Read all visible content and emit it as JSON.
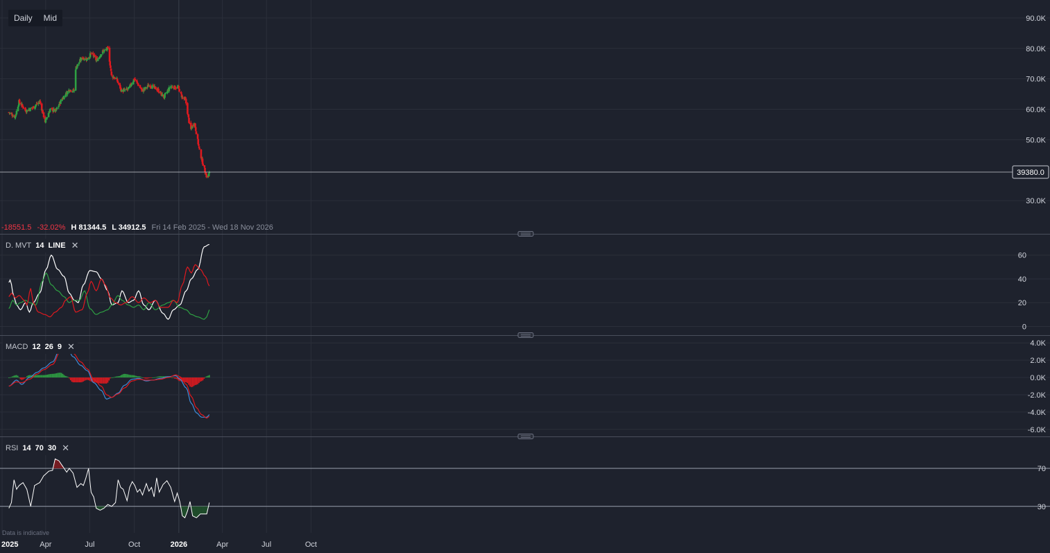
{
  "toolbar": {
    "timeframe": "Daily",
    "price_type": "Mid"
  },
  "stats": {
    "change": "-18551.5",
    "change_pct": "-32.02%",
    "high": "H 81344.5",
    "low": "L 34912.5",
    "range": "Fri 14 Feb 2025 - Wed 18 Nov 2026"
  },
  "last_price": "39380.0",
  "panes": {
    "price": {
      "ticks": [
        "90.0K",
        "80.0K",
        "70.0K",
        "60.0K",
        "50.0K",
        "30.0K"
      ],
      "tick_values": [
        90000,
        80000,
        70000,
        60000,
        50000,
        30000
      ]
    },
    "dmvt": {
      "name": "D. MVT",
      "params": [
        "14",
        "LINE"
      ],
      "ticks": [
        "60",
        "40",
        "20",
        "0"
      ],
      "tick_values": [
        60,
        40,
        20,
        0
      ]
    },
    "macd": {
      "name": "MACD",
      "params": [
        "12",
        "26",
        "9"
      ],
      "ticks": [
        "4.0K",
        "2.0K",
        "0.0K",
        "-2.0K",
        "-4.0K",
        "-6.0K"
      ],
      "tick_values": [
        4000,
        2000,
        0,
        -2000,
        -4000,
        -6000
      ]
    },
    "rsi": {
      "name": "RSI",
      "params": [
        "14",
        "70",
        "30"
      ],
      "ticks": [
        "70",
        "30"
      ],
      "tick_values": [
        70,
        30
      ]
    }
  },
  "x_axis": {
    "labels": [
      "2025",
      "Apr",
      "Jul",
      "Oct",
      "2026",
      "Apr",
      "Jul",
      "Oct"
    ],
    "dates": [
      "2025-01-01",
      "2025-04-01",
      "2025-07-01",
      "2025-10-01",
      "2026-01-01",
      "2026-04-01",
      "2026-07-01",
      "2026-10-01"
    ]
  },
  "disclaimer": "Data is indicative",
  "colors": {
    "background": "#1e222d",
    "up": "#2ea043",
    "down": "#e0191f",
    "grid": "#2b2f3a",
    "white": "#ffffff",
    "macd_line": "#3f8ad6",
    "signal": "#e0191f",
    "dplus": "#2ea043",
    "dminus": "#e0191f",
    "adx": "#ffffff",
    "rsi": "#ffffff"
  },
  "chart_data": [
    {
      "type": "candlestick",
      "pane": "price",
      "x_range": [
        "2025-01-15",
        "2026-03-05"
      ],
      "ylim": [
        20000,
        95000
      ],
      "last": 39380,
      "anchors": [
        [
          "2025-01-15",
          59000
        ],
        [
          "2025-01-28",
          57500
        ],
        [
          "2025-02-05",
          62500
        ],
        [
          "2025-02-20",
          59500
        ],
        [
          "2025-03-05",
          60500
        ],
        [
          "2025-03-20",
          62500
        ],
        [
          "2025-03-31",
          56000
        ],
        [
          "2025-04-10",
          60000
        ],
        [
          "2025-04-22",
          59500
        ],
        [
          "2025-05-05",
          63500
        ],
        [
          "2025-05-20",
          66500
        ],
        [
          "2025-05-31",
          66000
        ],
        [
          "2025-06-02",
          73500
        ],
        [
          "2025-06-15",
          77000
        ],
        [
          "2025-06-25",
          76500
        ],
        [
          "2025-07-05",
          78500
        ],
        [
          "2025-07-15",
          76000
        ],
        [
          "2025-07-28",
          79000
        ],
        [
          "2025-08-08",
          80000
        ],
        [
          "2025-08-15",
          71000
        ],
        [
          "2025-08-25",
          70000
        ],
        [
          "2025-09-05",
          66000
        ],
        [
          "2025-09-18",
          66500
        ],
        [
          "2025-10-01",
          70000
        ],
        [
          "2025-10-18",
          66000
        ],
        [
          "2025-11-01",
          68000
        ],
        [
          "2025-11-18",
          66500
        ],
        [
          "2025-12-01",
          64000
        ],
        [
          "2025-12-15",
          67500
        ],
        [
          "2025-12-31",
          67000
        ],
        [
          "2026-01-08",
          64000
        ],
        [
          "2026-01-15",
          63000
        ],
        [
          "2026-01-25",
          53000
        ],
        [
          "2026-02-02",
          56000
        ],
        [
          "2026-02-12",
          47000
        ],
        [
          "2026-02-20",
          42000
        ],
        [
          "2026-02-28",
          37500
        ],
        [
          "2026-03-03",
          38000
        ],
        [
          "2026-03-05",
          39380
        ]
      ]
    },
    {
      "type": "line",
      "pane": "dmvt",
      "ylim": [
        -5,
        75
      ],
      "series": [
        {
          "role": "adx",
          "values": [
            [
              0,
              37
            ],
            [
              1,
              39
            ],
            [
              4,
              25
            ],
            [
              6,
              18
            ],
            [
              9,
              14
            ],
            [
              13,
              20
            ],
            [
              16,
              12
            ],
            [
              19,
              20
            ],
            [
              24,
              28
            ],
            [
              29,
              48
            ],
            [
              33,
              60
            ],
            [
              38,
              48
            ],
            [
              43,
              42
            ],
            [
              47,
              28
            ],
            [
              51,
              22
            ],
            [
              54,
              20
            ],
            [
              58,
              35
            ],
            [
              63,
              47
            ],
            [
              68,
              46
            ],
            [
              72,
              40
            ],
            [
              77,
              30
            ],
            [
              80,
              18
            ],
            [
              85,
              20
            ],
            [
              88,
              30
            ],
            [
              93,
              20
            ],
            [
              97,
              22
            ],
            [
              101,
              30
            ],
            [
              105,
              18
            ],
            [
              109,
              14
            ],
            [
              114,
              22
            ],
            [
              120,
              11
            ],
            [
              124,
              6
            ],
            [
              128,
              14
            ],
            [
              133,
              18
            ],
            [
              138,
              30
            ],
            [
              142,
              40
            ],
            [
              147,
              48
            ],
            [
              152,
              67
            ],
            [
              156,
              69
            ]
          ]
        },
        {
          "role": "dplus",
          "values": [
            [
              0,
              15
            ],
            [
              3,
              22
            ],
            [
              6,
              18
            ],
            [
              9,
              20
            ],
            [
              13,
              22
            ],
            [
              16,
              20
            ],
            [
              21,
              18
            ],
            [
              26,
              38
            ],
            [
              29,
              45
            ],
            [
              33,
              35
            ],
            [
              38,
              30
            ],
            [
              43,
              25
            ],
            [
              47,
              20
            ],
            [
              50,
              22
            ],
            [
              55,
              22
            ],
            [
              59,
              30
            ],
            [
              63,
              15
            ],
            [
              68,
              10
            ],
            [
              72,
              12
            ],
            [
              77,
              14
            ],
            [
              80,
              18
            ],
            [
              85,
              26
            ],
            [
              88,
              22
            ],
            [
              93,
              18
            ],
            [
              97,
              16
            ],
            [
              101,
              18
            ],
            [
              105,
              14
            ],
            [
              109,
              20
            ],
            [
              114,
              14
            ],
            [
              120,
              18
            ],
            [
              124,
              20
            ],
            [
              128,
              22
            ],
            [
              133,
              16
            ],
            [
              138,
              14
            ],
            [
              142,
              10
            ],
            [
              147,
              8
            ],
            [
              152,
              6
            ],
            [
              154,
              8
            ],
            [
              156,
              14
            ]
          ]
        },
        {
          "role": "dminus",
          "values": [
            [
              0,
              25
            ],
            [
              2,
              28
            ],
            [
              5,
              24
            ],
            [
              8,
              26
            ],
            [
              12,
              22
            ],
            [
              14,
              18
            ],
            [
              17,
              32
            ],
            [
              19,
              20
            ],
            [
              23,
              12
            ],
            [
              28,
              10
            ],
            [
              32,
              8
            ],
            [
              36,
              12
            ],
            [
              41,
              16
            ],
            [
              44,
              22
            ],
            [
              48,
              25
            ],
            [
              52,
              12
            ],
            [
              57,
              14
            ],
            [
              61,
              28
            ],
            [
              64,
              38
            ],
            [
              68,
              30
            ],
            [
              72,
              40
            ],
            [
              75,
              35
            ],
            [
              79,
              24
            ],
            [
              83,
              20
            ],
            [
              87,
              18
            ],
            [
              91,
              20
            ],
            [
              96,
              25
            ],
            [
              101,
              20
            ],
            [
              105,
              24
            ],
            [
              110,
              20
            ],
            [
              114,
              22
            ],
            [
              118,
              16
            ],
            [
              124,
              16
            ],
            [
              128,
              22
            ],
            [
              131,
              20
            ],
            [
              135,
              35
            ],
            [
              139,
              50
            ],
            [
              142,
              45
            ],
            [
              145,
              52
            ],
            [
              149,
              48
            ],
            [
              153,
              42
            ],
            [
              156,
              34
            ]
          ]
        }
      ]
    },
    {
      "type": "macd",
      "pane": "macd",
      "ylim": [
        -6500,
        4500
      ],
      "macd": [
        [
          0,
          -1000
        ],
        [
          6,
          -300
        ],
        [
          10,
          -800
        ],
        [
          16,
          0
        ],
        [
          22,
          600
        ],
        [
          27,
          1100
        ],
        [
          34,
          1800
        ],
        [
          40,
          3400
        ],
        [
          45,
          3600
        ],
        [
          50,
          2400
        ],
        [
          56,
          1400
        ],
        [
          61,
          800
        ],
        [
          66,
          -600
        ],
        [
          72,
          -1500
        ],
        [
          76,
          -2500
        ],
        [
          80,
          -2300
        ],
        [
          85,
          -1800
        ],
        [
          90,
          -900
        ],
        [
          96,
          -200
        ],
        [
          101,
          -100
        ],
        [
          107,
          -400
        ],
        [
          112,
          -300
        ],
        [
          118,
          -100
        ],
        [
          124,
          100
        ],
        [
          130,
          200
        ],
        [
          133,
          -200
        ],
        [
          138,
          -1200
        ],
        [
          142,
          -3000
        ],
        [
          146,
          -4100
        ],
        [
          150,
          -4600
        ],
        [
          154,
          -4600
        ],
        [
          156,
          -4300
        ]
      ],
      "signal": [
        [
          0,
          -1000
        ],
        [
          6,
          -500
        ],
        [
          10,
          -600
        ],
        [
          16,
          -200
        ],
        [
          22,
          400
        ],
        [
          27,
          900
        ],
        [
          34,
          1500
        ],
        [
          40,
          3000
        ],
        [
          45,
          3500
        ],
        [
          50,
          2800
        ],
        [
          56,
          1800
        ],
        [
          61,
          1000
        ],
        [
          66,
          -200
        ],
        [
          72,
          -1000
        ],
        [
          76,
          -2000
        ],
        [
          80,
          -2300
        ],
        [
          85,
          -1900
        ],
        [
          90,
          -1200
        ],
        [
          96,
          -400
        ],
        [
          101,
          -200
        ],
        [
          107,
          -300
        ],
        [
          112,
          -300
        ],
        [
          118,
          -200
        ],
        [
          124,
          0
        ],
        [
          130,
          300
        ],
        [
          133,
          100
        ],
        [
          138,
          -800
        ],
        [
          142,
          -2200
        ],
        [
          146,
          -3500
        ],
        [
          150,
          -4300
        ],
        [
          154,
          -4700
        ],
        [
          156,
          -4500
        ]
      ]
    },
    {
      "type": "line",
      "pane": "rsi",
      "ylim": [
        5,
        100
      ],
      "bands": [
        70,
        30
      ],
      "values": [
        [
          0,
          28
        ],
        [
          2,
          34
        ],
        [
          4,
          58
        ],
        [
          6,
          48
        ],
        [
          8,
          52
        ],
        [
          11,
          55
        ],
        [
          14,
          48
        ],
        [
          17,
          30
        ],
        [
          20,
          52
        ],
        [
          24,
          55
        ],
        [
          27,
          62
        ],
        [
          31,
          67
        ],
        [
          34,
          68
        ],
        [
          36,
          80
        ],
        [
          39,
          78
        ],
        [
          42,
          72
        ],
        [
          45,
          66
        ],
        [
          47,
          70
        ],
        [
          50,
          65
        ],
        [
          53,
          50
        ],
        [
          56,
          54
        ],
        [
          58,
          52
        ],
        [
          60,
          60
        ],
        [
          62,
          70
        ],
        [
          64,
          45
        ],
        [
          66,
          40
        ],
        [
          68,
          28
        ],
        [
          71,
          26
        ],
        [
          74,
          28
        ],
        [
          77,
          32
        ],
        [
          80,
          30
        ],
        [
          83,
          34
        ],
        [
          85,
          58
        ],
        [
          87,
          50
        ],
        [
          89,
          48
        ],
        [
          92,
          36
        ],
        [
          94,
          50
        ],
        [
          96,
          56
        ],
        [
          98,
          52
        ],
        [
          100,
          45
        ],
        [
          102,
          48
        ],
        [
          104,
          42
        ],
        [
          107,
          54
        ],
        [
          109,
          46
        ],
        [
          111,
          50
        ],
        [
          113,
          40
        ],
        [
          115,
          60
        ],
        [
          117,
          45
        ],
        [
          120,
          53
        ],
        [
          123,
          57
        ],
        [
          126,
          50
        ],
        [
          129,
          35
        ],
        [
          131,
          44
        ],
        [
          133,
          35
        ],
        [
          135,
          20
        ],
        [
          137,
          18
        ],
        [
          139,
          25
        ],
        [
          141,
          35
        ],
        [
          143,
          20
        ],
        [
          146,
          18
        ],
        [
          149,
          22
        ],
        [
          152,
          22
        ],
        [
          154,
          22
        ],
        [
          156,
          34
        ]
      ]
    }
  ]
}
